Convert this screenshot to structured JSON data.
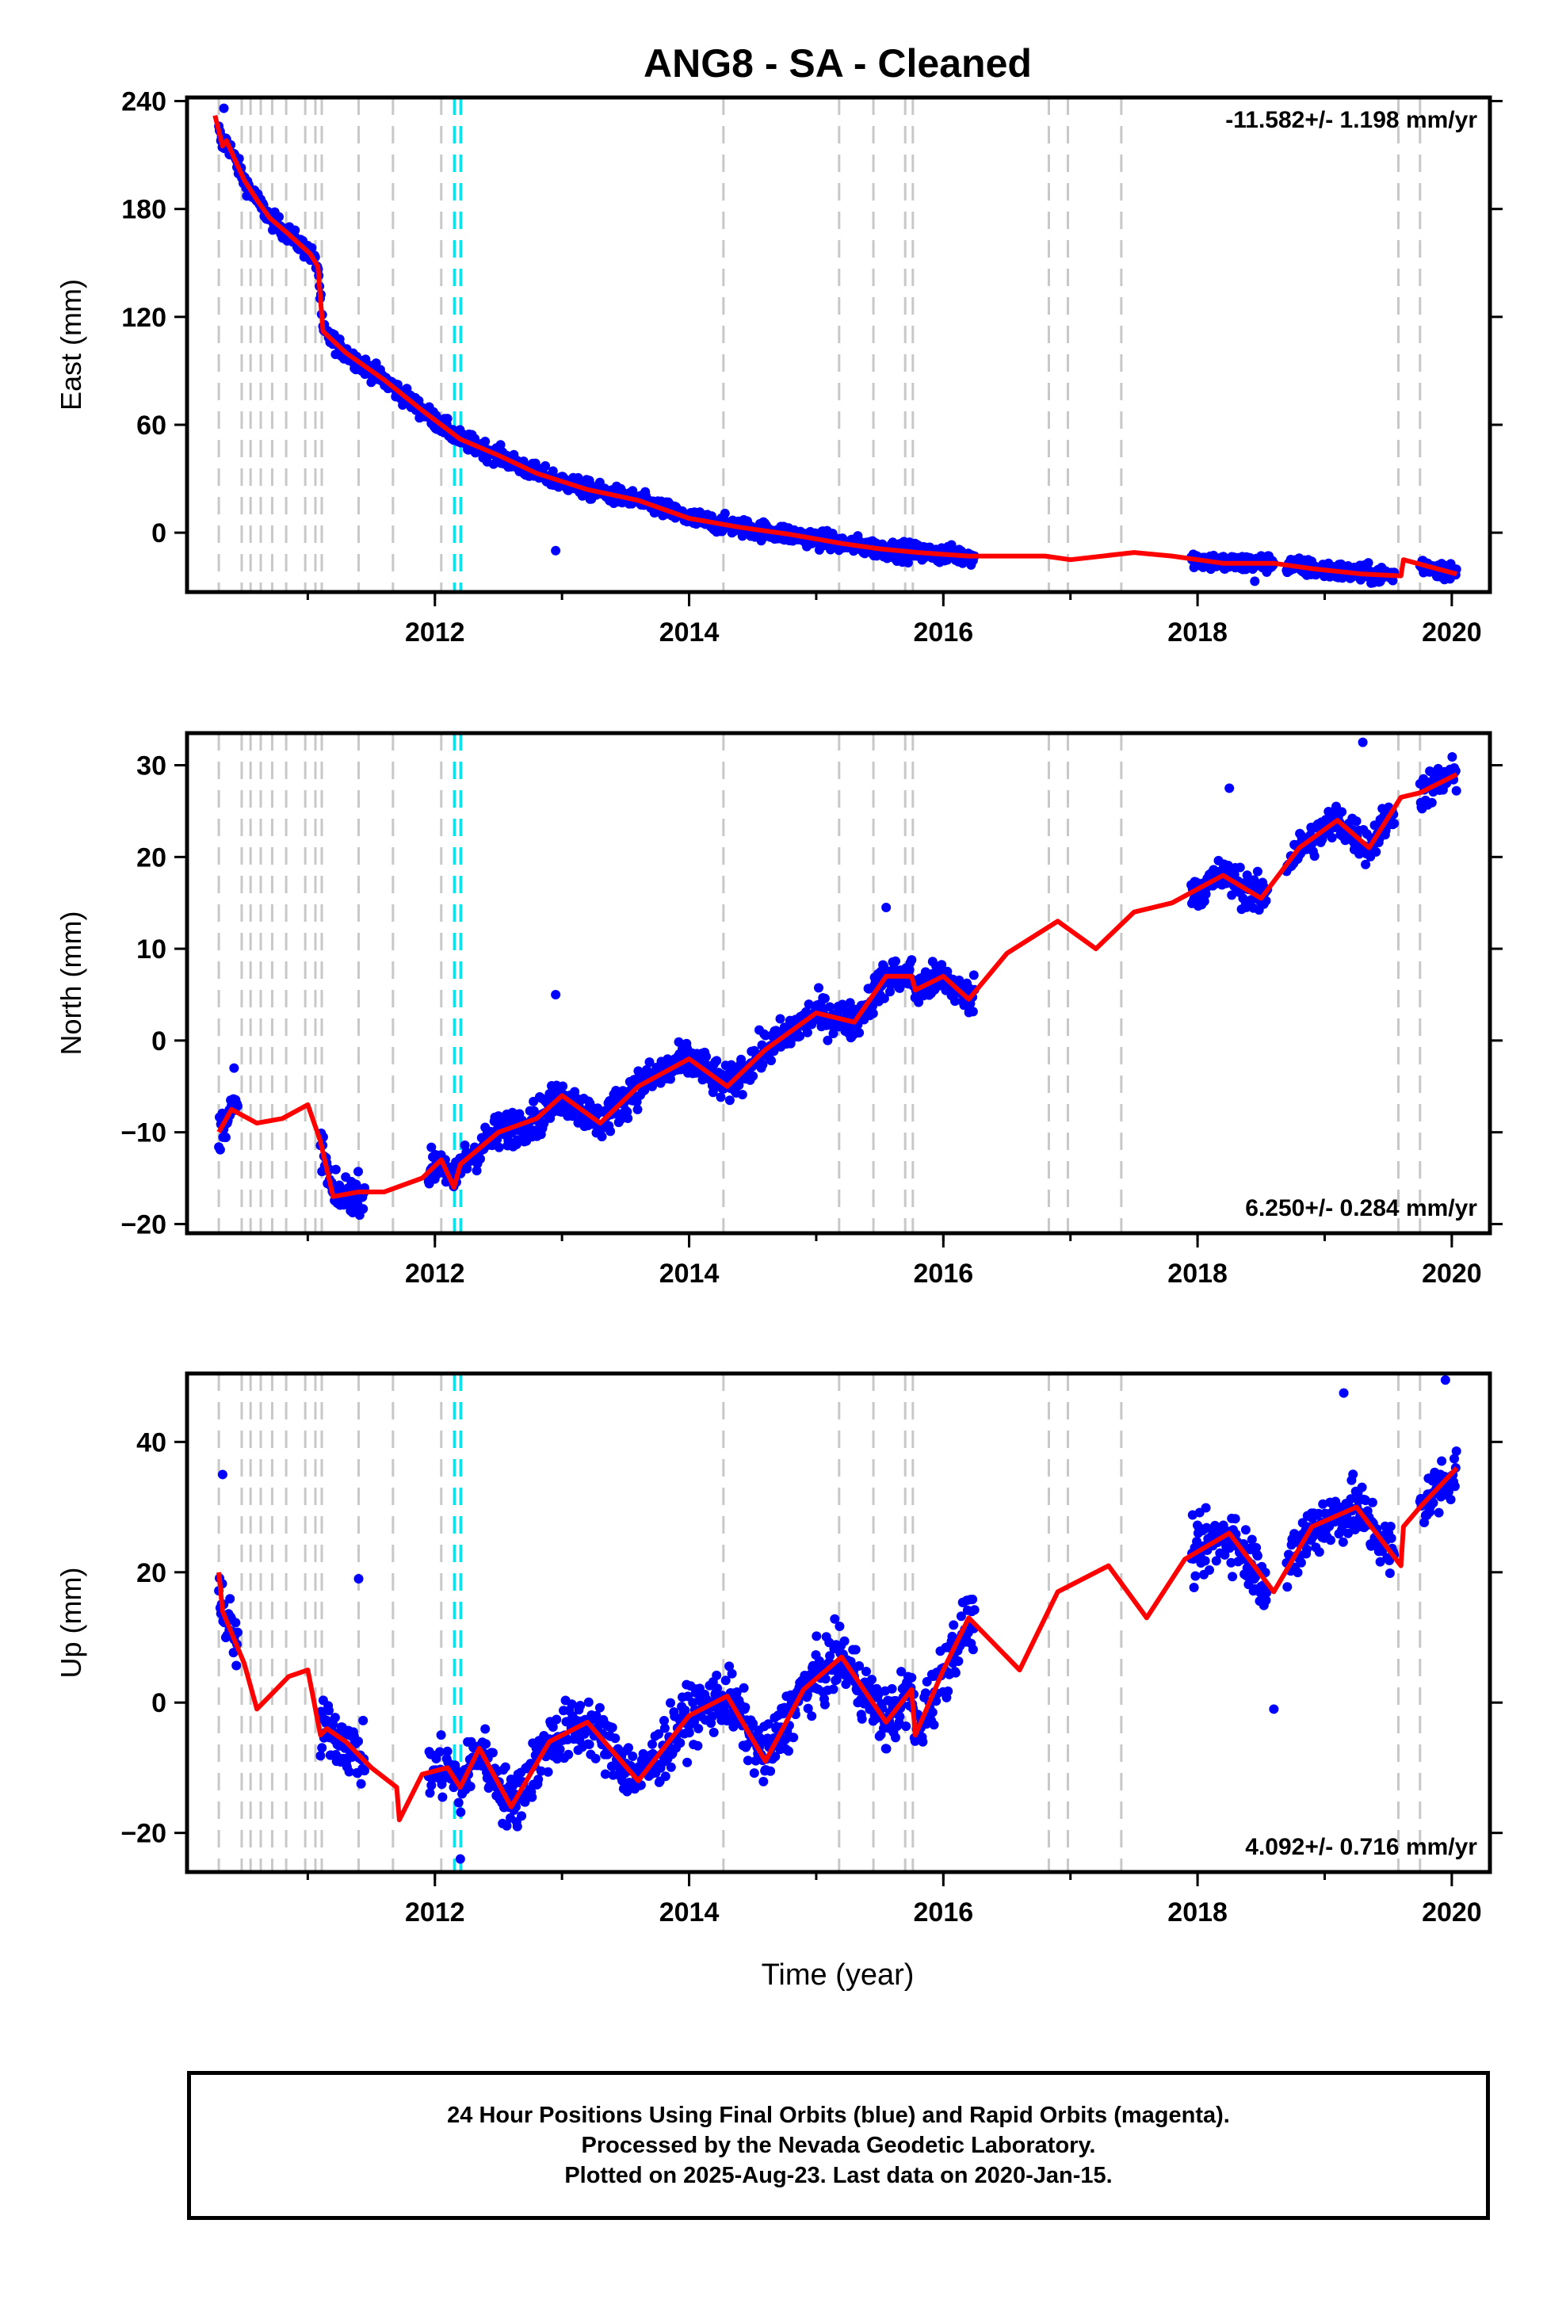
{
  "title": "ANG8  - SA - Cleaned",
  "xlabel": "Time (year)",
  "footer": {
    "line1": "24 Hour Positions Using Final Orbits (blue) and Rapid Orbits (magenta).",
    "line2": "Processed by the Nevada Geodetic Laboratory.",
    "line3": "Plotted on 2025-Aug-23. Last data on 2020-Jan-15."
  },
  "colors": {
    "final_orbits": "#0000ff",
    "model": "#ff0000",
    "equipment_change": "#c8c8c8",
    "earthquake": "#00e5ee"
  },
  "chart_data": [
    {
      "type": "scatter",
      "component": "East",
      "ylabel": "East (mm)",
      "rate_label": "-11.582+/- 1.198 mm/yr",
      "rate_position": "top-right",
      "xlim": [
        2010.05,
        2020.3
      ],
      "ylim": [
        -33,
        242
      ],
      "yticks": [
        240,
        180,
        120,
        60,
        0
      ],
      "xticks": [
        2012,
        2014,
        2016,
        2018,
        2020
      ],
      "data_segments": [
        [
          2010.3,
          2016.25
        ],
        [
          2017.95,
          2018.6
        ],
        [
          2018.7,
          2019.55
        ],
        [
          2019.75,
          2020.04
        ]
      ],
      "model": {
        "x": [
          2010.27,
          2010.33,
          2010.36,
          2010.5,
          2010.6,
          2010.7,
          2010.85,
          2011.02,
          2011.08,
          2011.12,
          2011.3,
          2011.6,
          2011.9,
          2012.2,
          2012.5,
          2012.8,
          2013.2,
          2013.6,
          2014.0,
          2014.4,
          2014.8,
          2015.2,
          2015.5,
          2015.8,
          2016.2,
          2016.8,
          2017.0,
          2017.5,
          2017.8,
          2018.2,
          2018.6,
          2018.9,
          2019.3,
          2019.6,
          2019.62,
          2020.04
        ],
        "y": [
          232,
          215,
          218,
          196,
          185,
          175,
          166,
          155,
          148,
          112,
          100,
          85,
          68,
          52,
          43,
          33,
          24,
          18,
          8,
          3,
          -1,
          -6,
          -9,
          -11,
          -13,
          -13,
          -15,
          -11,
          -13,
          -17,
          -17,
          -20,
          -23,
          -24,
          -15,
          -23
        ]
      },
      "scatter": {
        "trend_noise_mm": 3.5,
        "outliers": [
          [
            2010.34,
            236
          ],
          [
            2018.45,
            -27
          ],
          [
            2012.95,
            -10
          ]
        ]
      }
    },
    {
      "type": "scatter",
      "component": "North",
      "ylabel": "North (mm)",
      "rate_label": "6.250+/- 0.284 mm/yr",
      "rate_position": "bottom-right",
      "xlim": [
        2010.05,
        2020.3
      ],
      "ylim": [
        -21,
        33.5
      ],
      "yticks": [
        30,
        20,
        10,
        0,
        -10,
        -20
      ],
      "xticks": [
        2012,
        2014,
        2016,
        2018,
        2020
      ],
      "data_segments": [
        [
          2010.3,
          2010.45
        ],
        [
          2011.1,
          2011.45
        ],
        [
          2011.95,
          2016.25
        ],
        [
          2017.95,
          2018.55
        ],
        [
          2018.7,
          2019.55
        ],
        [
          2019.75,
          2020.04
        ]
      ],
      "model": {
        "x": [
          2010.3,
          2010.4,
          2010.6,
          2010.8,
          2011.0,
          2011.1,
          2011.2,
          2011.4,
          2011.6,
          2011.9,
          2012.05,
          2012.15,
          2012.2,
          2012.5,
          2012.8,
          2013.0,
          2013.3,
          2013.6,
          2014.0,
          2014.3,
          2014.6,
          2015.0,
          2015.3,
          2015.55,
          2015.75,
          2015.78,
          2016.0,
          2016.2,
          2016.5,
          2016.9,
          2017.2,
          2017.5,
          2017.8,
          2018.2,
          2018.5,
          2018.8,
          2019.1,
          2019.35,
          2019.6,
          2019.75,
          2020.04
        ],
        "y": [
          -10,
          -7.5,
          -9,
          -8.5,
          -7,
          -11,
          -17,
          -16.5,
          -16.5,
          -15,
          -13,
          -16,
          -13.5,
          -10,
          -8.5,
          -6,
          -9,
          -5,
          -2,
          -5,
          -1,
          3,
          2,
          7,
          7,
          5.5,
          7,
          4.5,
          9.5,
          13,
          10,
          14,
          15,
          18,
          15.5,
          21,
          24,
          21,
          26.5,
          27,
          29
        ]
      },
      "scatter": {
        "trend_noise_mm": 1.4,
        "outliers": [
          [
            2010.42,
            -3
          ],
          [
            2012.95,
            5
          ],
          [
            2019.3,
            32.5
          ],
          [
            2015.55,
            14.5
          ],
          [
            2018.25,
            27.5
          ]
        ]
      }
    },
    {
      "type": "scatter",
      "component": "Up",
      "ylabel": "Up (mm)",
      "rate_label": "4.092+/- 0.716 mm/yr",
      "rate_position": "bottom-right",
      "xlim": [
        2010.05,
        2020.3
      ],
      "ylim": [
        -26,
        50.5
      ],
      "yticks": [
        40,
        20,
        0,
        -20
      ],
      "xticks": [
        2012,
        2014,
        2016,
        2018,
        2020
      ],
      "data_segments": [
        [
          2010.3,
          2010.45
        ],
        [
          2011.1,
          2011.45
        ],
        [
          2011.95,
          2016.25
        ],
        [
          2017.95,
          2018.55
        ],
        [
          2018.7,
          2019.55
        ],
        [
          2019.75,
          2020.04
        ]
      ],
      "model": {
        "x": [
          2010.3,
          2010.33,
          2010.5,
          2010.6,
          2010.75,
          2010.85,
          2011.0,
          2011.1,
          2011.15,
          2011.3,
          2011.5,
          2011.7,
          2011.72,
          2011.9,
          2012.1,
          2012.2,
          2012.35,
          2012.6,
          2012.9,
          2013.2,
          2013.6,
          2014.0,
          2014.3,
          2014.6,
          2014.9,
          2015.2,
          2015.55,
          2015.75,
          2015.78,
          2016.0,
          2016.2,
          2016.6,
          2016.9,
          2017.3,
          2017.6,
          2017.9,
          2018.25,
          2018.6,
          2018.9,
          2019.25,
          2019.6,
          2019.62,
          2019.75,
          2020.04
        ],
        "y": [
          20,
          14,
          6,
          -1,
          2,
          4,
          5,
          -5,
          -4,
          -6,
          -10,
          -13,
          -18,
          -11,
          -10,
          -13,
          -7,
          -16,
          -6,
          -3,
          -12,
          -2,
          1,
          -9,
          2,
          7,
          -3,
          2,
          -5,
          5,
          13,
          5,
          17,
          21,
          13,
          22,
          26,
          17,
          27,
          30,
          21,
          27,
          30,
          36
        ]
      },
      "scatter": {
        "trend_noise_mm": 3.2,
        "outliers": [
          [
            2010.33,
            35
          ],
          [
            2011.4,
            19
          ],
          [
            2012.2,
            -24
          ],
          [
            2019.15,
            47.5
          ],
          [
            2019.95,
            49.5
          ],
          [
            2018.6,
            -1
          ]
        ]
      }
    }
  ],
  "event_lines": {
    "equipment": [
      2010.3,
      2010.48,
      2010.55,
      2010.63,
      2010.72,
      2010.83,
      2010.98,
      2011.06,
      2011.11,
      2011.4,
      2011.67,
      2012.05,
      2012.15,
      2012.2,
      2014.27,
      2015.18,
      2015.45,
      2015.7,
      2015.76,
      2016.83,
      2016.98,
      2017.4,
      2019.58,
      2019.75
    ],
    "earthquake": [
      2012.18
    ]
  }
}
